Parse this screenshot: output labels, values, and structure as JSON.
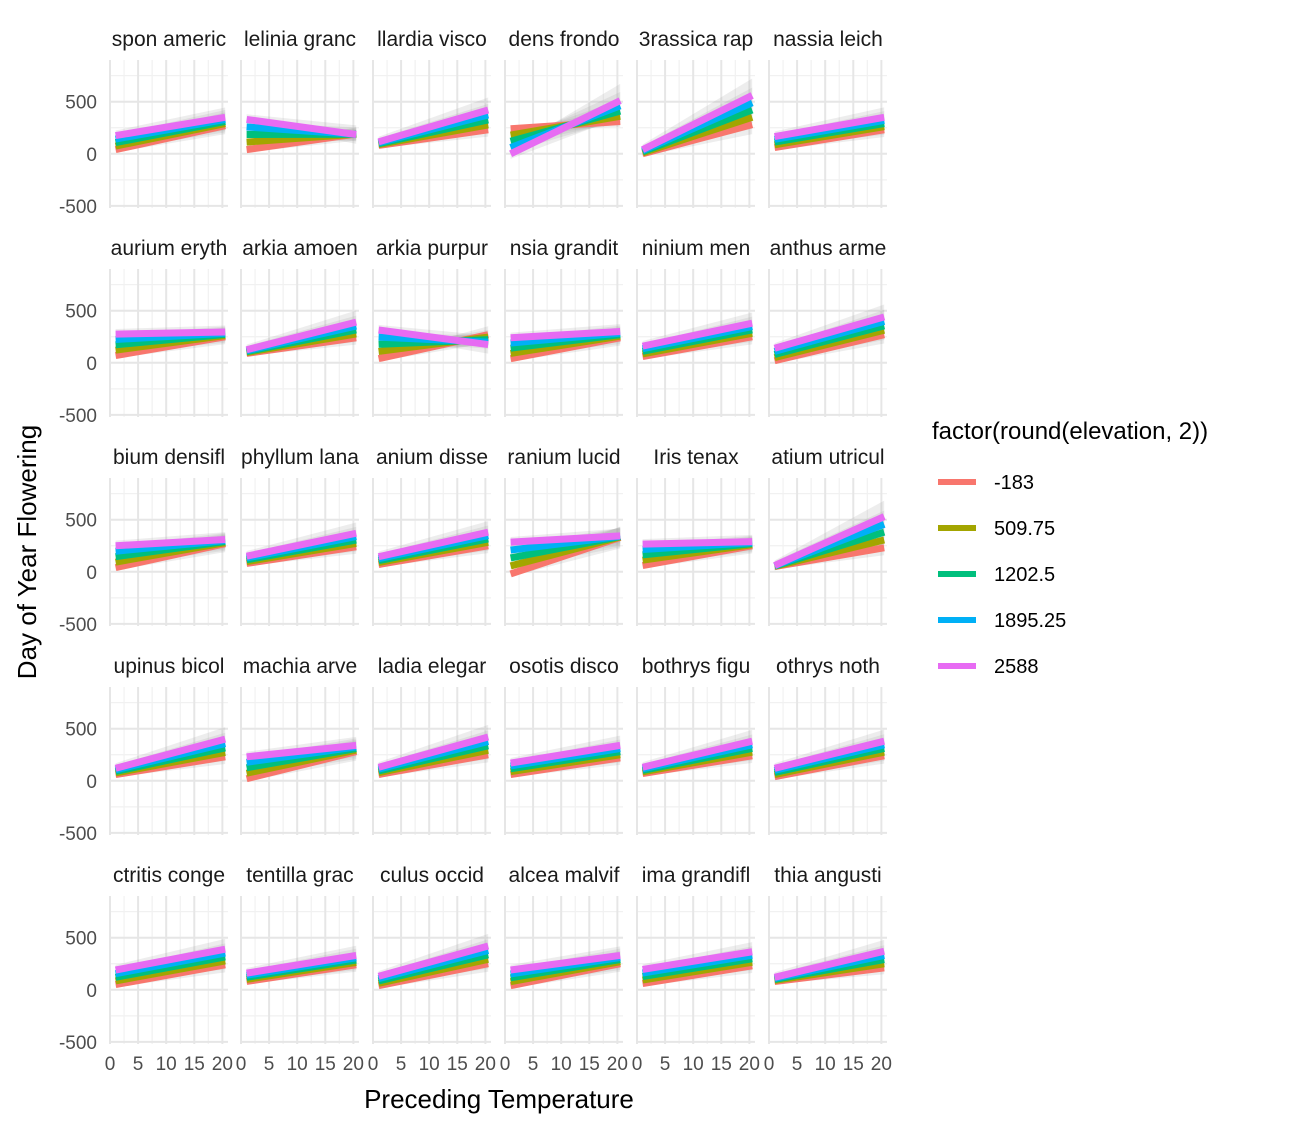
{
  "chart_data": {
    "type": "line",
    "xlabel": "Preceding Temperature",
    "ylabel": "Day of Year Flowering",
    "xlim": [
      0,
      21
    ],
    "ylim": [
      -520,
      900
    ],
    "x_ticks": [
      0,
      5,
      10,
      15,
      20
    ],
    "x_tick_labels": [
      "0",
      "5",
      "10",
      "15",
      "20"
    ],
    "y_ticks": [
      -500,
      0,
      500
    ],
    "y_tick_labels": [
      "-500",
      "0",
      "500"
    ],
    "grid": true,
    "legend": {
      "title": "factor(round(elevation, 2))",
      "position": "right",
      "entries": [
        {
          "label": "-183",
          "color": "#F8766D"
        },
        {
          "label": "509.75",
          "color": "#A3A500"
        },
        {
          "label": "1202.5",
          "color": "#00BF7D"
        },
        {
          "label": "1895.25",
          "color": "#00B0F6"
        },
        {
          "label": "2588",
          "color": "#E76BF3"
        }
      ]
    },
    "x_range": [
      1,
      20.5
    ],
    "panels": [
      {
        "title": "spon americ",
        "lines": [
          [
            40,
            270
          ],
          [
            175,
            350
          ]
        ]
      },
      {
        "title": "lelinia granc",
        "lines": [
          [
            40,
            190
          ],
          [
            330,
            185
          ]
        ]
      },
      {
        "title": "llardia visco",
        "lines": [
          [
            80,
            230
          ],
          [
            115,
            420
          ]
        ]
      },
      {
        "title": "dens frondo",
        "lines": [
          [
            240,
            310
          ],
          [
            0,
            510
          ]
        ]
      },
      {
        "title": "3rassica rap",
        "lines": [
          [
            0,
            280
          ],
          [
            40,
            560
          ]
        ]
      },
      {
        "title": "nassia leich",
        "lines": [
          [
            60,
            230
          ],
          [
            165,
            350
          ]
        ]
      },
      {
        "title": "aurium eryth",
        "lines": [
          [
            70,
            250
          ],
          [
            275,
            295
          ]
        ]
      },
      {
        "title": "arkia amoen",
        "lines": [
          [
            90,
            240
          ],
          [
            125,
            390
          ]
        ]
      },
      {
        "title": "arkia purpur",
        "lines": [
          [
            40,
            270
          ],
          [
            315,
            175
          ]
        ]
      },
      {
        "title": "nsia grandit",
        "lines": [
          [
            40,
            240
          ],
          [
            240,
            300
          ]
        ]
      },
      {
        "title": "ninium men",
        "lines": [
          [
            60,
            250
          ],
          [
            160,
            380
          ]
        ]
      },
      {
        "title": "anthus arme",
        "lines": [
          [
            20,
            270
          ],
          [
            140,
            440
          ]
        ]
      },
      {
        "title": "bium densifl",
        "lines": [
          [
            40,
            270
          ],
          [
            250,
            310
          ]
        ]
      },
      {
        "title": "phyllum lana",
        "lines": [
          [
            80,
            240
          ],
          [
            150,
            370
          ]
        ]
      },
      {
        "title": "anium disse",
        "lines": [
          [
            70,
            250
          ],
          [
            145,
            380
          ]
        ]
      },
      {
        "title": "ranium lucid",
        "lines": [
          [
            -20,
            330
          ],
          [
            285,
            345
          ]
        ]
      },
      {
        "title": "Iris tenax",
        "lines": [
          [
            60,
            250
          ],
          [
            265,
            290
          ]
        ]
      },
      {
        "title": "atium utricul",
        "lines": [
          [
            50,
            230
          ],
          [
            60,
            530
          ]
        ]
      },
      {
        "title": "upinus bicol",
        "lines": [
          [
            60,
            230
          ],
          [
            120,
            400
          ]
        ]
      },
      {
        "title": "machia arve",
        "lines": [
          [
            20,
            280
          ],
          [
            230,
            340
          ]
        ]
      },
      {
        "title": "ladia elegar",
        "lines": [
          [
            60,
            250
          ],
          [
            130,
            420
          ]
        ]
      },
      {
        "title": "osotis disco",
        "lines": [
          [
            60,
            220
          ],
          [
            170,
            340
          ]
        ]
      },
      {
        "title": "bothrys figu",
        "lines": [
          [
            70,
            240
          ],
          [
            130,
            380
          ]
        ]
      },
      {
        "title": "othrys noth",
        "lines": [
          [
            40,
            240
          ],
          [
            120,
            380
          ]
        ]
      },
      {
        "title": "ctritis conge",
        "lines": [
          [
            50,
            240
          ],
          [
            190,
            390
          ]
        ]
      },
      {
        "title": "tentilla grac",
        "lines": [
          [
            80,
            240
          ],
          [
            160,
            330
          ]
        ]
      },
      {
        "title": "culus occid",
        "lines": [
          [
            40,
            250
          ],
          [
            130,
            420
          ]
        ]
      },
      {
        "title": "alcea malvif",
        "lines": [
          [
            40,
            250
          ],
          [
            190,
            330
          ]
        ]
      },
      {
        "title": "ima grandifl",
        "lines": [
          [
            60,
            230
          ],
          [
            195,
            365
          ]
        ]
      },
      {
        "title": "thia angusti",
        "lines": [
          [
            80,
            210
          ],
          [
            120,
            370
          ]
        ]
      }
    ]
  }
}
